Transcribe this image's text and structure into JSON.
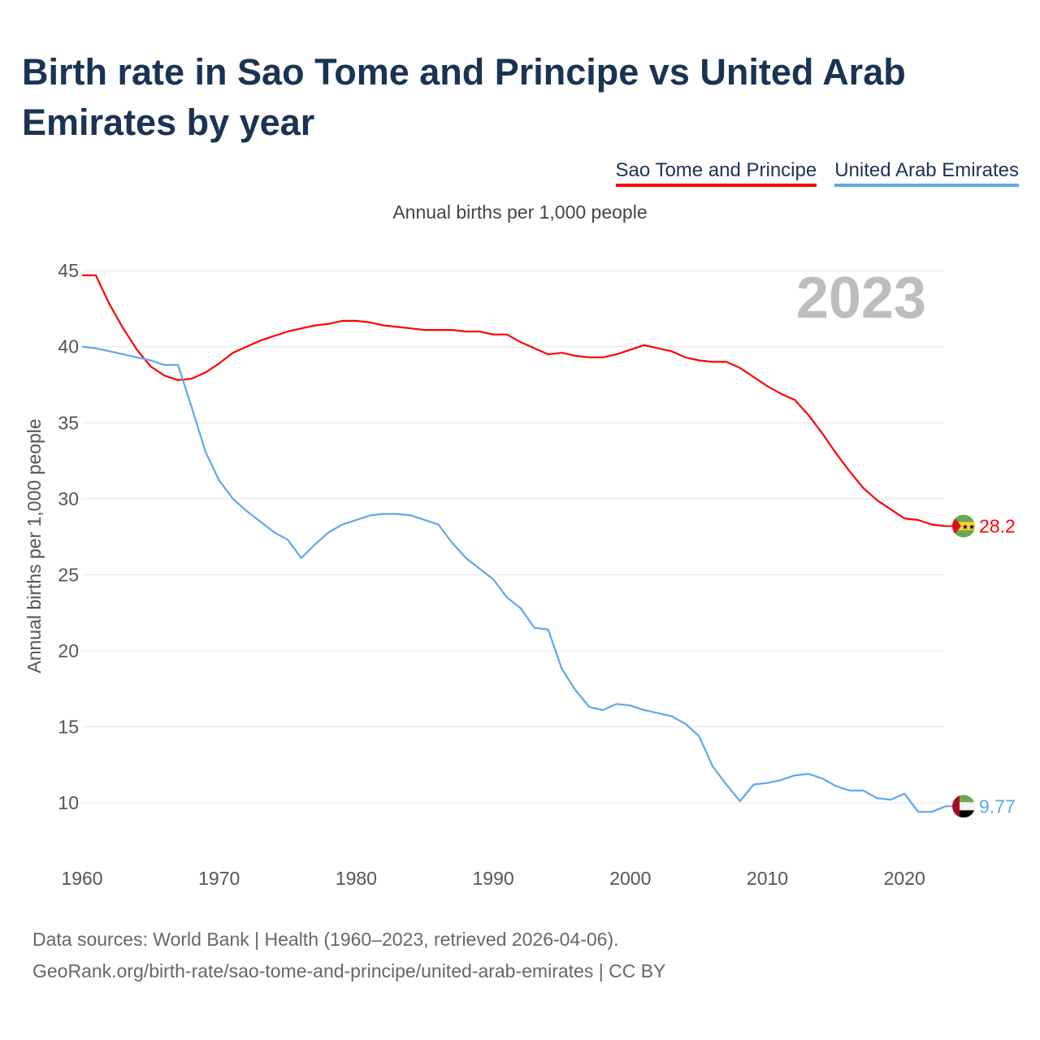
{
  "chart_data": {
    "type": "line",
    "title": "Birth rate in Sao Tome and Principe vs United Arab Emirates by year",
    "subtitle": "Annual births per 1,000 people",
    "ylabel": "Annual births per 1,000 people",
    "xlabel": "",
    "year_label": "2023",
    "ylim": [
      7,
      45.5
    ],
    "xlim": [
      1960,
      2023
    ],
    "yticks": [
      10,
      15,
      20,
      25,
      30,
      35,
      40,
      45
    ],
    "xticks": [
      1960,
      1970,
      1980,
      1990,
      2000,
      2010,
      2020
    ],
    "legend_position": "top-right",
    "grid": true,
    "x": [
      1960,
      1961,
      1962,
      1963,
      1964,
      1965,
      1966,
      1967,
      1968,
      1969,
      1970,
      1971,
      1972,
      1973,
      1974,
      1975,
      1976,
      1977,
      1978,
      1979,
      1980,
      1981,
      1982,
      1983,
      1984,
      1985,
      1986,
      1987,
      1988,
      1989,
      1990,
      1991,
      1992,
      1993,
      1994,
      1995,
      1996,
      1997,
      1998,
      1999,
      2000,
      2001,
      2002,
      2003,
      2004,
      2005,
      2006,
      2007,
      2008,
      2009,
      2010,
      2011,
      2012,
      2013,
      2014,
      2015,
      2016,
      2017,
      2018,
      2019,
      2020,
      2021,
      2022,
      2023
    ],
    "series": [
      {
        "name": "Sao Tome and Principe",
        "color": "#ff0000",
        "end_label": "28.2",
        "values": [
          44.7,
          44.7,
          42.8,
          41.2,
          39.8,
          38.7,
          38.1,
          37.8,
          37.9,
          38.3,
          38.9,
          39.6,
          40.0,
          40.4,
          40.7,
          41.0,
          41.2,
          41.4,
          41.5,
          41.7,
          41.7,
          41.6,
          41.4,
          41.3,
          41.2,
          41.1,
          41.1,
          41.1,
          41.0,
          41.0,
          40.8,
          40.8,
          40.3,
          39.9,
          39.5,
          39.6,
          39.4,
          39.3,
          39.3,
          39.5,
          39.8,
          40.1,
          39.9,
          39.7,
          39.3,
          39.1,
          39.0,
          39.0,
          38.6,
          38.0,
          37.4,
          36.9,
          36.5,
          35.5,
          34.3,
          33.0,
          31.8,
          30.7,
          29.9,
          29.3,
          28.7,
          28.6,
          28.3,
          28.2
        ]
      },
      {
        "name": "United Arab Emirates",
        "color": "#5ea8ec",
        "end_label": "9.77",
        "values": [
          40.0,
          39.9,
          39.7,
          39.5,
          39.3,
          39.1,
          38.8,
          38.8,
          36.0,
          33.1,
          31.2,
          30.0,
          29.2,
          28.5,
          27.8,
          27.3,
          26.1,
          27.0,
          27.8,
          28.3,
          28.6,
          28.9,
          29.0,
          29.0,
          28.9,
          28.6,
          28.3,
          27.1,
          26.1,
          25.4,
          24.7,
          23.5,
          22.8,
          21.5,
          21.4,
          18.8,
          17.4,
          16.3,
          16.1,
          16.5,
          16.4,
          16.1,
          15.9,
          15.7,
          15.2,
          14.4,
          12.4,
          11.2,
          10.1,
          11.2,
          11.3,
          11.5,
          11.8,
          11.9,
          11.6,
          11.1,
          10.8,
          10.8,
          10.3,
          10.2,
          10.6,
          9.4,
          9.4,
          9.77
        ]
      }
    ]
  },
  "footer": {
    "line1": "Data sources: World Bank | Health (1960–2023, retrieved 2026-04-06).",
    "line2": "GeoRank.org/birth-rate/sao-tome-and-principe/united-arab-emirates | CC BY"
  }
}
